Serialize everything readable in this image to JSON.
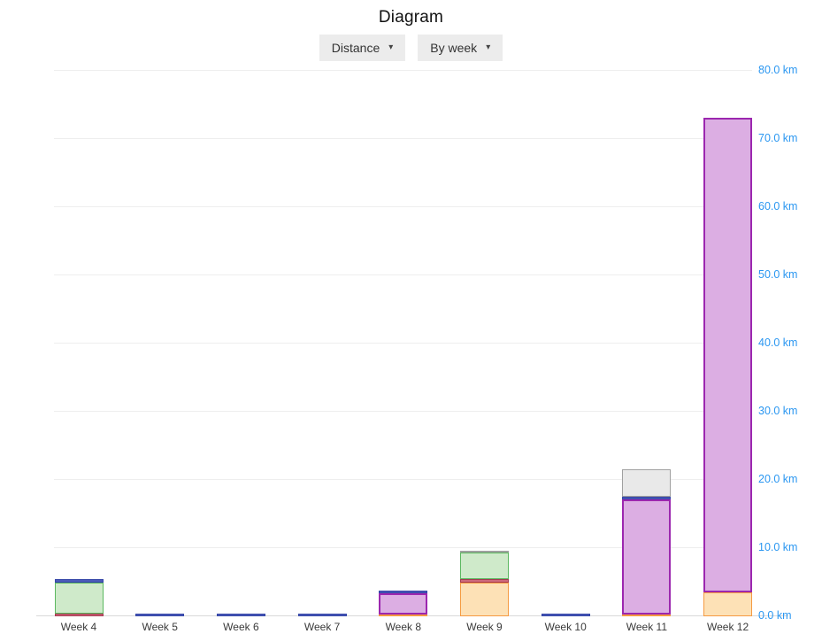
{
  "page": {
    "title": "Diagram"
  },
  "controls": {
    "metric_dropdown": {
      "label": "Distance",
      "caret": "▾"
    },
    "grouping_dropdown": {
      "label": "By week",
      "caret": "▾"
    }
  },
  "chart_data": {
    "type": "bar",
    "stacked": true,
    "title": "Diagram",
    "xlabel": "",
    "ylabel": "km",
    "ylim": [
      0,
      80
    ],
    "grid": true,
    "legend": "none",
    "axis_label_color": "#2b97f1",
    "x_label_color": "#3a3a3a",
    "gridline_color": "#eeeeee",
    "axis_line_color": "#d9d9d9",
    "categories": [
      "Week 4",
      "Week 5",
      "Week 6",
      "Week 7",
      "Week 8",
      "Week 9",
      "Week 10",
      "Week 11",
      "Week 12"
    ],
    "y_ticks": [
      "0.0 km",
      "10.0 km",
      "20.0 km",
      "30.0 km",
      "40.0 km",
      "50.0 km",
      "60.0 km",
      "70.0 km",
      "80.0 km"
    ],
    "series": [
      {
        "name": "orange",
        "fill": "#fde1b6",
        "border": "#f59b42",
        "border_px": 1,
        "values": [
          0,
          0,
          0,
          0,
          0.3,
          5.0,
          0,
          0.3,
          3.5
        ]
      },
      {
        "name": "red",
        "fill": "#cf6a7c",
        "border": "#a63a52",
        "border_px": 1,
        "values": [
          0.4,
          0,
          0,
          0,
          0,
          0.4,
          0,
          0,
          0
        ]
      },
      {
        "name": "green",
        "fill": "#cfeaca",
        "border": "#5cb860",
        "border_px": 1,
        "values": [
          4.6,
          0,
          0,
          0,
          0,
          3.9,
          0,
          0,
          0
        ]
      },
      {
        "name": "purple",
        "fill": "#dcaee3",
        "border": "#9c27af",
        "border_px": 2,
        "values": [
          0,
          0,
          0,
          0,
          3.1,
          0,
          0,
          16.8,
          69.6
        ]
      },
      {
        "name": "blue",
        "fill": "#4b5ab8",
        "border": "#3546a8",
        "border_px": 1,
        "values": [
          0.4,
          0.4,
          0.4,
          0.4,
          0.4,
          0,
          0.4,
          0.4,
          0
        ]
      },
      {
        "name": "gray",
        "fill": "#e9e9e9",
        "border": "#a0a0a0",
        "border_px": 1,
        "values": [
          0,
          0,
          0,
          0,
          0,
          0.3,
          0,
          4.1,
          0
        ]
      }
    ]
  }
}
